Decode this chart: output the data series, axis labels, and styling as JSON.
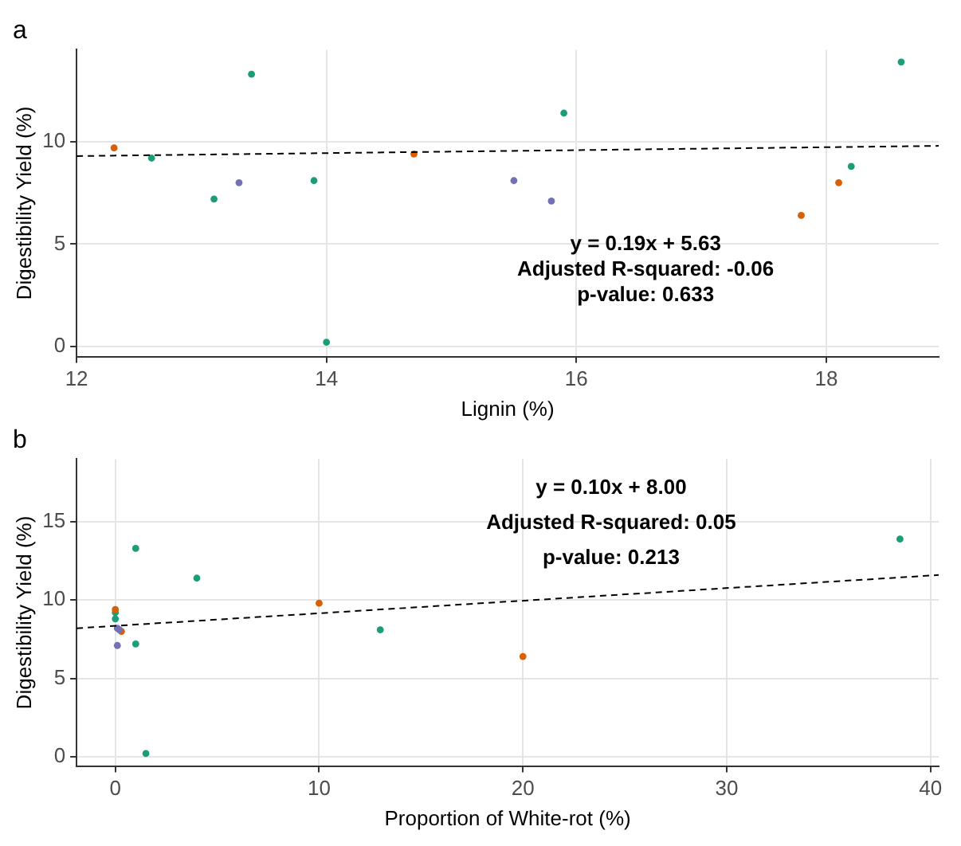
{
  "chart_data": [
    {
      "type": "scatter",
      "title": "a",
      "xlabel": "Lignin (%)",
      "ylabel": "Digestibility Yield (%)",
      "xlim": [
        12,
        18.9
      ],
      "ylim": [
        -0.5,
        14.5
      ],
      "xticks": [
        12,
        14,
        16,
        18
      ],
      "yticks": [
        0,
        5,
        10
      ],
      "grid": true,
      "annotations": [
        "y = 0.19x + 5.63",
        "Adjusted R-squared: -0.06",
        "p-value: 0.633"
      ],
      "series": [
        {
          "type": "scatter",
          "color": "#1b9e77",
          "marker": "circle",
          "x": [
            12.6,
            13.1,
            13.4,
            13.9,
            14.0,
            15.9,
            18.2,
            18.6
          ],
          "values": [
            9.2,
            7.2,
            13.3,
            8.1,
            0.2,
            11.4,
            8.8,
            13.9
          ]
        },
        {
          "type": "scatter",
          "color": "#d95f02",
          "marker": "circle",
          "x": [
            12.3,
            14.7,
            17.8,
            18.1
          ],
          "values": [
            9.7,
            9.4,
            6.4,
            8.0
          ]
        },
        {
          "type": "scatter",
          "color": "#7570b3",
          "marker": "circle",
          "x": [
            13.3,
            15.5,
            15.8
          ],
          "values": [
            8.0,
            8.1,
            7.1
          ]
        },
        {
          "type": "line",
          "color": "#000000",
          "marker": "none",
          "line_style": "dashed",
          "x": [
            12,
            18.9
          ],
          "values": [
            9.3,
            9.8
          ]
        }
      ]
    },
    {
      "type": "scatter",
      "title": "b",
      "xlabel": "Proportion of White-rot (%)",
      "ylabel": "Digestibility Yield (%)",
      "xlim": [
        -1.9,
        40.4
      ],
      "ylim": [
        -0.6,
        19
      ],
      "xticks": [
        0,
        10,
        20,
        30,
        40
      ],
      "yticks": [
        0,
        5,
        10,
        15
      ],
      "grid": true,
      "annotations": [
        "y = 0.10x + 8.00",
        "Adjusted R-squared: 0.05",
        "p-value: 0.213"
      ],
      "series": [
        {
          "type": "scatter",
          "color": "#1b9e77",
          "marker": "circle",
          "x": [
            0,
            0,
            1,
            4,
            1,
            1.5,
            13,
            38.5
          ],
          "values": [
            9.2,
            8.8,
            13.3,
            11.4,
            7.2,
            0.2,
            8.1,
            13.9
          ]
        },
        {
          "type": "scatter",
          "color": "#d95f02",
          "marker": "circle",
          "x": [
            0,
            10,
            20,
            0.3
          ],
          "values": [
            9.4,
            9.8,
            6.4,
            8.0
          ]
        },
        {
          "type": "scatter",
          "color": "#7570b3",
          "marker": "circle",
          "x": [
            0.1,
            0.2,
            0.1
          ],
          "values": [
            8.2,
            8.1,
            7.1
          ]
        },
        {
          "type": "line",
          "color": "#000000",
          "marker": "none",
          "line_style": "dashed",
          "x": [
            -1.9,
            40.4
          ],
          "values": [
            8.2,
            11.6
          ]
        }
      ]
    }
  ]
}
